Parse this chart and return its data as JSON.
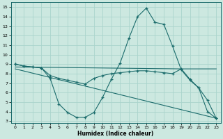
{
  "xlabel": "Humidex (Indice chaleur)",
  "xlim": [
    -0.5,
    23.5
  ],
  "ylim": [
    2.8,
    15.5
  ],
  "yticks": [
    3,
    4,
    5,
    6,
    7,
    8,
    9,
    10,
    11,
    12,
    13,
    14,
    15
  ],
  "xticks": [
    0,
    1,
    2,
    3,
    4,
    5,
    6,
    7,
    8,
    9,
    10,
    11,
    12,
    13,
    14,
    15,
    16,
    17,
    18,
    19,
    20,
    21,
    22,
    23
  ],
  "bg_color": "#cce8e0",
  "grid_color": "#aad4cc",
  "line_color": "#1a6b6b",
  "line1_x": [
    0,
    1,
    2,
    3,
    4,
    5,
    6,
    7,
    8,
    9,
    10,
    11,
    12,
    13,
    14,
    15,
    16,
    17,
    18,
    19,
    20,
    21,
    22,
    23
  ],
  "line1_y": [
    9.0,
    8.8,
    8.7,
    8.6,
    7.5,
    4.8,
    3.9,
    3.4,
    3.4,
    3.9,
    5.5,
    7.4,
    9.1,
    11.7,
    14.0,
    14.9,
    13.4,
    13.2,
    10.9,
    8.4,
    7.3,
    6.5,
    4.0,
    3.3
  ],
  "line2_x": [
    0,
    1,
    2,
    3,
    4,
    5,
    6,
    7,
    8,
    9,
    10,
    11,
    12,
    13,
    14,
    15,
    16,
    17,
    18,
    19,
    20,
    21,
    22,
    23
  ],
  "line2_y": [
    9.0,
    8.8,
    8.7,
    8.6,
    7.8,
    7.5,
    7.3,
    7.1,
    6.9,
    7.5,
    7.8,
    8.0,
    8.1,
    8.2,
    8.3,
    8.3,
    8.2,
    8.1,
    8.0,
    8.5,
    7.4,
    6.5,
    5.2,
    3.3
  ],
  "line3_x": [
    0,
    19,
    23
  ],
  "line3_y": [
    8.7,
    8.5,
    8.5
  ],
  "line4_x": [
    0,
    23
  ],
  "line4_y": [
    8.5,
    3.3
  ]
}
